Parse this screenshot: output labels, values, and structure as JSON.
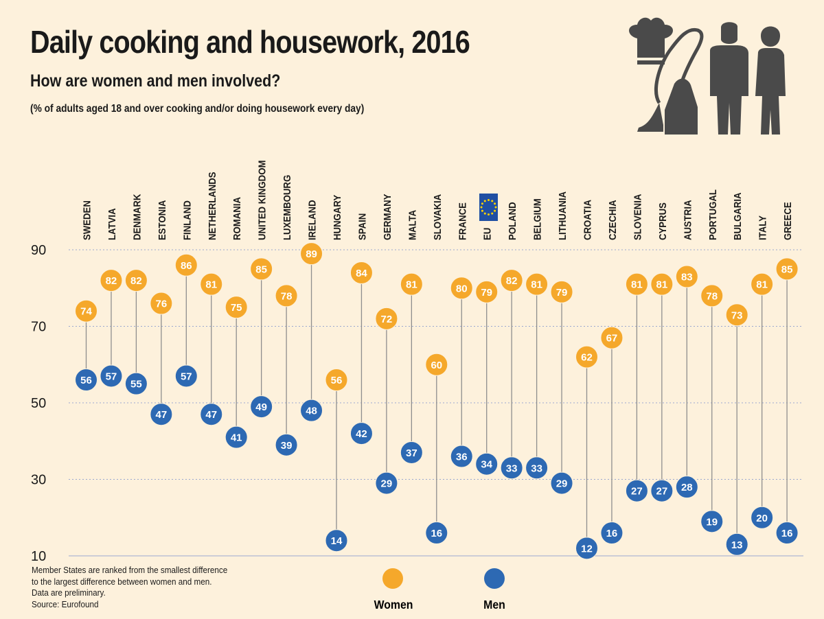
{
  "title": "Daily cooking and housework, 2016",
  "subtitle": "How are women and men involved?",
  "note": "(% of adults aged 18 and over cooking and/or doing housework every day)",
  "footnote": {
    "line1": "Member States are ranked from the smallest difference",
    "line2": "to the largest difference between women and men.",
    "line3": "Data are preliminary.",
    "line4": "Source: Eurofound"
  },
  "legend": {
    "women": "Women",
    "men": "Men"
  },
  "colors": {
    "women": "#f5a82b",
    "men": "#2d69b3",
    "background": "#fdf1dc",
    "eu_flag": "#1f4fa3",
    "eu_stars": "#ffd400",
    "icons": "#4a4a4a"
  },
  "icons": [
    "chef-hat-icon",
    "vacuum-cleaner-icon",
    "man-icon",
    "woman-icon"
  ],
  "chart_data": {
    "type": "scatter",
    "title": "Daily cooking and housework, 2016",
    "subtitle": "How are women and men involved?",
    "categories": [
      "SWEDEN",
      "LATVIA",
      "DENMARK",
      "ESTONIA",
      "FINLAND",
      "NETHERLANDS",
      "ROMANIA",
      "UNITED KINGDOM",
      "LUXEMBOURG",
      "IRELAND",
      "HUNGARY",
      "SPAIN",
      "GERMANY",
      "MALTA",
      "SLOVAKIA",
      "FRANCE",
      "EU",
      "POLAND",
      "BELGIUM",
      "LITHUANIA",
      "CROATIA",
      "CZECHIA",
      "SLOVENIA",
      "CYPRUS",
      "AUSTRIA",
      "PORTUGAL",
      "BULGARIA",
      "ITALY",
      "GREECE"
    ],
    "series": [
      {
        "name": "Women",
        "values": [
          74,
          82,
          82,
          76,
          86,
          81,
          75,
          85,
          78,
          89,
          56,
          84,
          72,
          81,
          60,
          80,
          79,
          82,
          81,
          79,
          62,
          67,
          81,
          81,
          83,
          78,
          73,
          81,
          85
        ]
      },
      {
        "name": "Men",
        "values": [
          56,
          57,
          55,
          47,
          57,
          47,
          41,
          49,
          39,
          48,
          14,
          42,
          29,
          37,
          16,
          36,
          34,
          33,
          33,
          29,
          12,
          16,
          27,
          27,
          28,
          19,
          13,
          20,
          16
        ]
      }
    ],
    "yticks": [
      10,
      30,
      50,
      70,
      90
    ],
    "ylim": [
      10,
      90
    ],
    "grid": true,
    "legend": "bottom"
  }
}
